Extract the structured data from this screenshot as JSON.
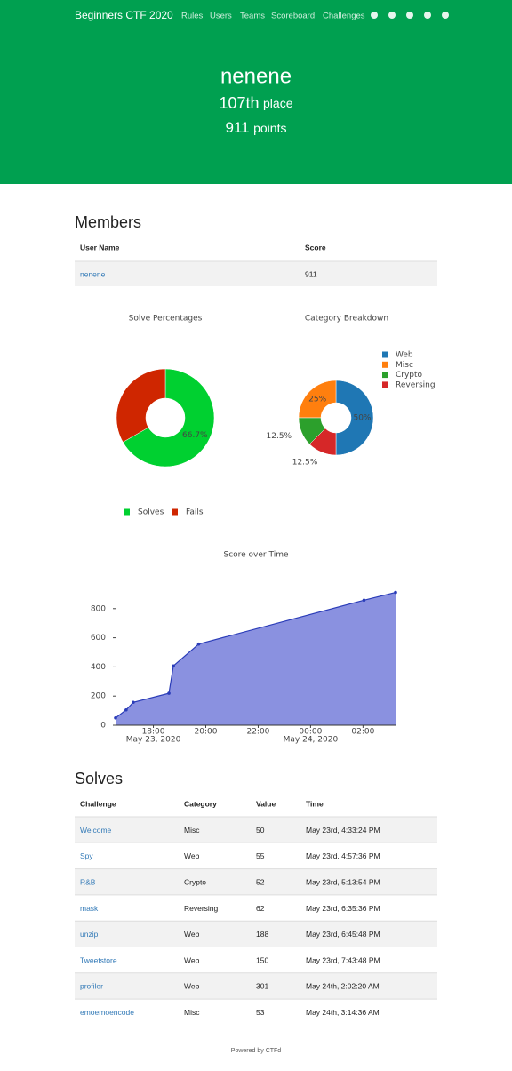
{
  "nav": {
    "brand": "Beginners CTF 2020",
    "links": [
      "Rules",
      "Users",
      "Teams",
      "Scoreboard",
      "Challenges"
    ]
  },
  "header": {
    "name": "nenene",
    "rank": {
      "value": "107th",
      "unit": "place"
    },
    "score": {
      "value": 911,
      "unit": "points"
    }
  },
  "members": {
    "title": "Members",
    "columns": [
      "User Name",
      "Score"
    ],
    "rows": [
      [
        "nenene",
        911
      ]
    ]
  },
  "chart_data": [
    {
      "type": "pie",
      "title": "Solve Percentages",
      "categories": [
        "Solves",
        "Fails"
      ],
      "values": [
        66.7,
        33.3
      ],
      "value_labels": [
        "66.7%",
        null
      ],
      "colors": [
        "#00d030",
        "#cf2600"
      ],
      "legend": "bottom"
    },
    {
      "type": "pie",
      "title": "Category Breakdown",
      "categories": [
        "Web",
        "Misc",
        "Crypto",
        "Reversing"
      ],
      "values": [
        50,
        25,
        12.5,
        12.5
      ],
      "value_labels": [
        "50%",
        "25%",
        "12.5%",
        "12.5%"
      ],
      "colors": [
        "#1f77b4",
        "#ff7f0e",
        "#2ca02c",
        "#d62728"
      ],
      "legend": "right"
    },
    {
      "type": "line",
      "title": "Score over Time",
      "x": [
        "2020-05-23T16:33:24",
        "2020-05-23T16:57:36",
        "2020-05-23T17:13:54",
        "2020-05-23T18:35:36",
        "2020-05-23T18:45:48",
        "2020-05-23T19:43:48",
        "2020-05-24T02:02:20",
        "2020-05-24T03:14:36"
      ],
      "values": [
        50,
        105,
        157,
        219,
        407,
        557,
        858,
        911
      ],
      "color": "#2a3cb8",
      "fill_color": "#8a91e0",
      "xlim": [
        "2020-05-23T16:33:24",
        "2020-05-24T03:14:36"
      ],
      "xticks": [
        {
          "value": "2020-05-23T18:00:00",
          "label": "18:00"
        },
        {
          "value": "2020-05-23T20:00:00",
          "label": "20:00"
        },
        {
          "value": "2020-05-23T22:00:00",
          "label": "22:00"
        },
        {
          "value": "2020-05-24T00:00:00",
          "label": "00:00"
        },
        {
          "value": "2020-05-24T02:00:00",
          "label": "02:00"
        }
      ],
      "xtick_dates": [
        {
          "value": "2020-05-23T18:00:00",
          "label": "May 23, 2020"
        },
        {
          "value": "2020-05-24T00:00:00",
          "label": "May 24, 2020"
        }
      ],
      "ylim": [
        0,
        1000
      ],
      "yticks": [
        0,
        200,
        400,
        600,
        800
      ]
    }
  ],
  "solves": {
    "title": "Solves",
    "columns": [
      "Challenge",
      "Category",
      "Value",
      "Time"
    ],
    "rows": [
      [
        "Welcome",
        "Misc",
        50,
        "May 23rd, 4:33:24 PM"
      ],
      [
        "Spy",
        "Web",
        55,
        "May 23rd, 4:57:36 PM"
      ],
      [
        "R&B",
        "Crypto",
        52,
        "May 23rd, 5:13:54 PM"
      ],
      [
        "mask",
        "Reversing",
        62,
        "May 23rd, 6:35:36 PM"
      ],
      [
        "unzip",
        "Web",
        188,
        "May 23rd, 6:45:48 PM"
      ],
      [
        "Tweetstore",
        "Web",
        150,
        "May 23rd, 7:43:48 PM"
      ],
      [
        "profiler",
        "Web",
        301,
        "May 24th, 2:02:20 AM"
      ],
      [
        "emoemoencode",
        "Misc",
        53,
        "May 24th, 3:14:36 AM"
      ]
    ]
  },
  "footer": "Powered by CTFd"
}
